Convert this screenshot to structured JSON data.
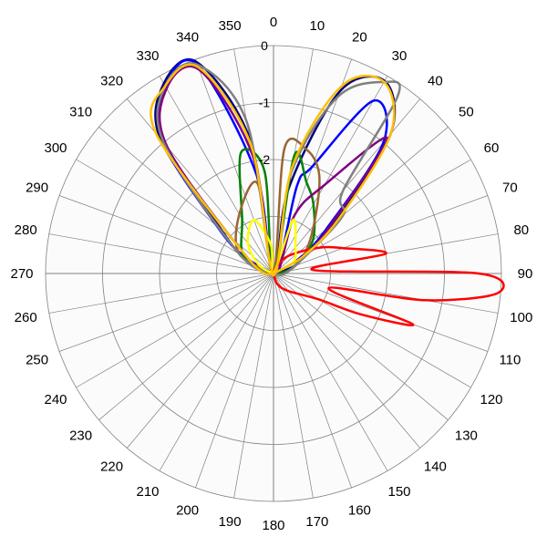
{
  "chart_data": {
    "type": "polar-line",
    "title": "",
    "angle_ticks": [
      "0",
      "10",
      "20",
      "30",
      "40",
      "50",
      "60",
      "70",
      "80",
      "90",
      "100",
      "110",
      "120",
      "130",
      "140",
      "150",
      "160",
      "170",
      "180",
      "190",
      "200",
      "210",
      "220",
      "230",
      "240",
      "250",
      "260",
      "270",
      "280",
      "290",
      "300",
      "310",
      "320",
      "330",
      "340",
      "350"
    ],
    "radial_ticks": [
      "0",
      "-1",
      "-2"
    ],
    "radial_range": [
      -4,
      0
    ],
    "radial_unit": "",
    "grid": true,
    "series": [
      {
        "color": "#000080",
        "points": [
          [
            0,
            -4
          ],
          [
            10,
            -2.5
          ],
          [
            20,
            -0.6
          ],
          [
            30,
            -0.1
          ],
          [
            40,
            -0.8
          ],
          [
            50,
            -2.6
          ],
          [
            60,
            -3.4
          ],
          [
            70,
            -3.6
          ],
          [
            80,
            -3.9
          ],
          [
            90,
            -4
          ],
          [
            270,
            -4
          ],
          [
            280,
            -3.9
          ],
          [
            290,
            -3.6
          ],
          [
            300,
            -3.3
          ],
          [
            310,
            -2.8
          ],
          [
            320,
            -0.9
          ],
          [
            330,
            -0.15
          ],
          [
            340,
            -0.05
          ],
          [
            350,
            -1.6
          ]
        ]
      },
      {
        "color": "#0000ff",
        "points": [
          [
            0,
            -4
          ],
          [
            15,
            -2.4
          ],
          [
            20,
            -2.0
          ],
          [
            30,
            -0.5
          ],
          [
            40,
            -1.0
          ],
          [
            50,
            -2.8
          ],
          [
            60,
            -3.5
          ],
          [
            90,
            -4
          ],
          [
            270,
            -4
          ],
          [
            300,
            -3.4
          ],
          [
            310,
            -2.7
          ],
          [
            320,
            -1.0
          ],
          [
            330,
            -0.2
          ],
          [
            340,
            -0.1
          ],
          [
            350,
            -2.2
          ]
        ]
      },
      {
        "color": "#008000",
        "points": [
          [
            0,
            -4
          ],
          [
            10,
            -1.9
          ],
          [
            20,
            -2.3
          ],
          [
            30,
            -2.6
          ],
          [
            50,
            -3.1
          ],
          [
            70,
            -3.6
          ],
          [
            90,
            -3.9
          ],
          [
            100,
            -4
          ],
          [
            270,
            -4
          ],
          [
            300,
            -3.4
          ],
          [
            330,
            -2.9
          ],
          [
            345,
            -1.8
          ],
          [
            355,
            -2.2
          ]
        ]
      },
      {
        "color": "#996633",
        "points": [
          [
            0,
            -4
          ],
          [
            5,
            -1.8
          ],
          [
            15,
            -1.75
          ],
          [
            25,
            -2.1
          ],
          [
            40,
            -2.9
          ],
          [
            60,
            -3.4
          ],
          [
            90,
            -3.8
          ],
          [
            100,
            -4
          ],
          [
            270,
            -4
          ],
          [
            300,
            -3.3
          ],
          [
            330,
            -2.8
          ],
          [
            350,
            -2.4
          ]
        ]
      },
      {
        "color": "#800080",
        "points": [
          [
            0,
            -4
          ],
          [
            20,
            -2.9
          ],
          [
            30,
            -2.2
          ],
          [
            40,
            -0.9
          ],
          [
            50,
            -2.7
          ],
          [
            60,
            -3.4
          ],
          [
            90,
            -4
          ],
          [
            270,
            -4
          ],
          [
            300,
            -3.5
          ],
          [
            320,
            -1.1
          ],
          [
            330,
            -0.25
          ],
          [
            340,
            -0.2
          ],
          [
            350,
            -1.9
          ]
        ]
      },
      {
        "color": "#808080",
        "points": [
          [
            0,
            -4
          ],
          [
            10,
            -2.2
          ],
          [
            20,
            -0.7
          ],
          [
            30,
            -0.12
          ],
          [
            35,
            -0.2
          ],
          [
            40,
            -2.1
          ],
          [
            50,
            -2.4
          ],
          [
            60,
            -3.3
          ],
          [
            90,
            -3.8
          ],
          [
            95,
            -4
          ],
          [
            270,
            -4
          ],
          [
            300,
            -3.3
          ],
          [
            320,
            -1.0
          ],
          [
            330,
            -0.2
          ],
          [
            340,
            -0.1
          ],
          [
            350,
            -1.3
          ]
        ]
      },
      {
        "color": "#ff0000",
        "points": [
          [
            0,
            -4
          ],
          [
            20,
            -3.9
          ],
          [
            40,
            -3.6
          ],
          [
            60,
            -3.1
          ],
          [
            70,
            -2.7
          ],
          [
            80,
            -2.0
          ],
          [
            85,
            -3.3
          ],
          [
            90,
            -0.4
          ],
          [
            95,
            -0.05
          ],
          [
            100,
            -1.3
          ],
          [
            105,
            -3.0
          ],
          [
            110,
            -1.4
          ],
          [
            115,
            -2.3
          ],
          [
            120,
            -3.1
          ],
          [
            140,
            -3.6
          ],
          [
            160,
            -3.8
          ],
          [
            180,
            -4
          ],
          [
            270,
            -4
          ]
        ]
      },
      {
        "color": "#ffff00",
        "points": [
          [
            0,
            -4
          ],
          [
            20,
            -3.0
          ],
          [
            40,
            -3.4
          ],
          [
            60,
            -3.6
          ],
          [
            90,
            -4
          ],
          [
            270,
            -4
          ],
          [
            300,
            -3.7
          ],
          [
            320,
            -3.3
          ],
          [
            340,
            -3.0
          ],
          [
            355,
            -3.5
          ]
        ]
      },
      {
        "color": "#ffc000",
        "points": [
          [
            0,
            -4
          ],
          [
            10,
            -2.1
          ],
          [
            20,
            -0.5
          ],
          [
            30,
            -0.12
          ],
          [
            40,
            -0.8
          ],
          [
            50,
            -2.5
          ],
          [
            60,
            -3.4
          ],
          [
            90,
            -4
          ],
          [
            270,
            -4
          ],
          [
            300,
            -3.5
          ],
          [
            320,
            -0.8
          ],
          [
            330,
            -0.2
          ],
          [
            340,
            -0.15
          ],
          [
            350,
            -1.7
          ]
        ]
      }
    ]
  }
}
